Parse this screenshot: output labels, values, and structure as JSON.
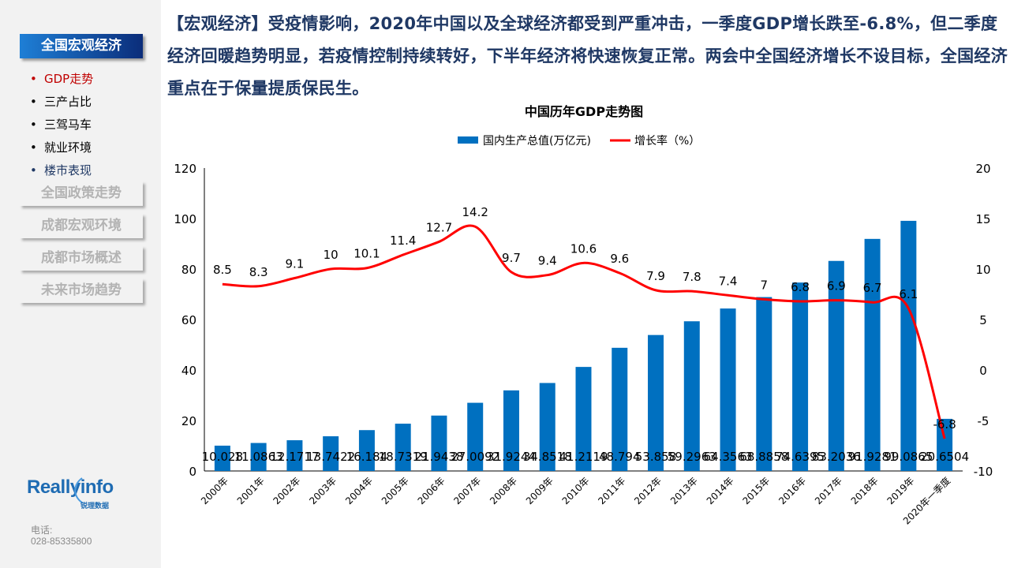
{
  "sidebar": {
    "active_section": "全国宏观经济",
    "sub_items": [
      {
        "label": "GDP走势",
        "state": "selected",
        "color": "#c00000"
      },
      {
        "label": "三产占比",
        "color": "#000000"
      },
      {
        "label": "三驾马车",
        "color": "#000000"
      },
      {
        "label": "就业环境",
        "color": "#000000"
      },
      {
        "label": "楼市表现",
        "color": "#1f3864"
      }
    ],
    "sections": [
      "全国政策走势",
      "成都宏观环境",
      "成都市场概述",
      "未来市场趋势"
    ],
    "logo": {
      "brand": "Reallyinfo",
      "sub": "锐理数据"
    },
    "phone_label": "电话:",
    "phone": "028-85335800"
  },
  "headline": "【宏观经济】受疫情影响，2020年中国以及全球经济都受到严重冲击，一季度GDP增长跌至-6.8%，但二季度经济回暖趋势明显，若疫情控制持续转好，下半年经济将快速恢复正常。两会中全国经济增长不设目标，全国经济重点在于保量提质保民生。",
  "chart_data": {
    "type": "bar+line",
    "title": "中国历年GDP走势图",
    "legend_position": "top",
    "categories": [
      "2000年",
      "2001年",
      "2002年",
      "2003年",
      "2004年",
      "2005年",
      "2006年",
      "2007年",
      "2008年",
      "2009年",
      "2010年",
      "2011年",
      "2012年",
      "2013年",
      "2014年",
      "2015年",
      "2016年",
      "2017年",
      "2018年",
      "2019年",
      "2020年一季度"
    ],
    "series": [
      {
        "name": "国内生产总值(万亿元)",
        "type": "bar",
        "axis": "left",
        "color": "#0070c0",
        "values": [
          10.028,
          11.0863,
          12.1717,
          13.7422,
          16.184,
          18.7319,
          21.9438,
          27.0092,
          31.9244,
          34.8518,
          41.2119,
          48.794,
          53.858,
          59.2963,
          64.3563,
          68.8858,
          74.6395,
          83.2036,
          91.9281,
          99.0865,
          20.6504
        ]
      },
      {
        "name": "增长率（%）",
        "type": "line",
        "axis": "right",
        "color": "#ff0000",
        "values": [
          8.5,
          8.3,
          9.1,
          10,
          10.1,
          11.4,
          12.7,
          14.2,
          9.7,
          9.4,
          10.6,
          9.6,
          7.9,
          7.8,
          7.4,
          7,
          6.8,
          6.9,
          6.7,
          6.1,
          -6.8
        ]
      }
    ],
    "y_left": {
      "range": [
        0,
        120
      ],
      "ticks": [
        0,
        20,
        40,
        60,
        80,
        100,
        120
      ]
    },
    "y_right": {
      "range": [
        -10,
        20
      ],
      "ticks": [
        -10,
        -5,
        0,
        5,
        10,
        15,
        20
      ]
    },
    "grid": false
  }
}
